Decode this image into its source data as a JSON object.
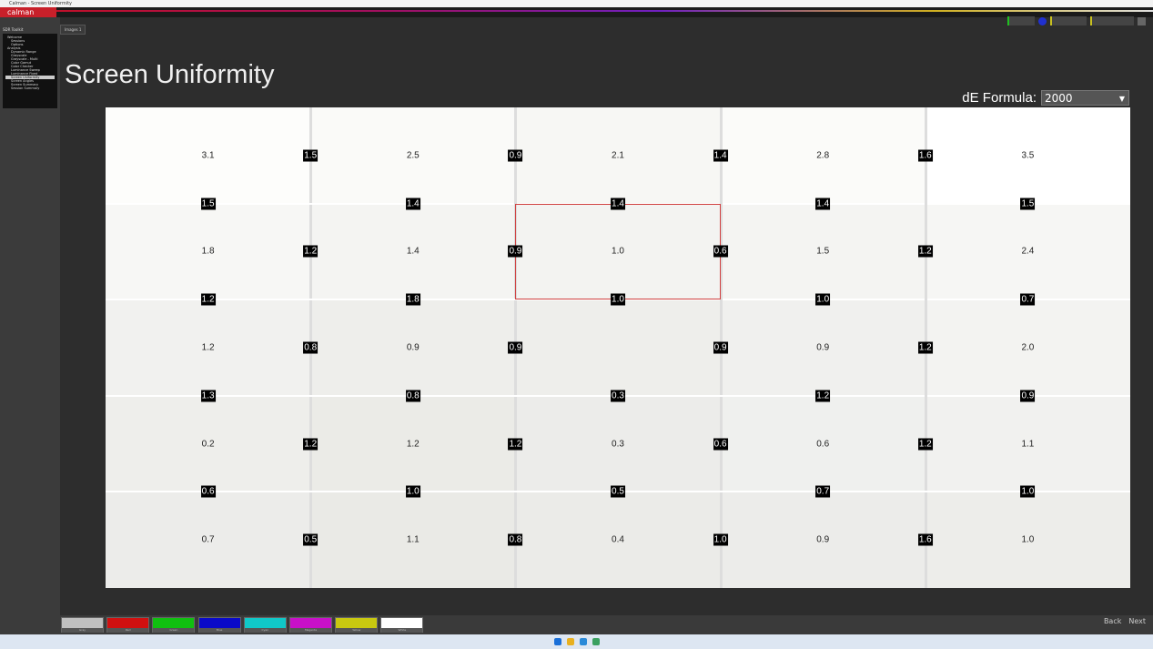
{
  "app": {
    "title": "Calman - Screen Uniformity",
    "logo": "calman",
    "tab": "Images 1"
  },
  "sidebar": {
    "header": "SDR Toolkit",
    "items": [
      {
        "label": "Welcome",
        "section": true
      },
      {
        "label": "Sessions"
      },
      {
        "label": "Options"
      },
      {
        "label": "Analysis",
        "section": true
      },
      {
        "label": "Dynamic Range"
      },
      {
        "label": "Grayscale"
      },
      {
        "label": "Grayscale - Multi"
      },
      {
        "label": "Color Gamut"
      },
      {
        "label": "Color Checker"
      },
      {
        "label": "Luminance Sweep"
      },
      {
        "label": "Luminance Fixed"
      },
      {
        "label": "Screen Uniformity",
        "selected": true
      },
      {
        "label": "Screen Angles"
      },
      {
        "label": "Screen Summary"
      },
      {
        "label": "Session Summary"
      }
    ]
  },
  "page": {
    "title": "Screen Uniformity"
  },
  "formula": {
    "label": "dE Formula:",
    "value": "2000"
  },
  "grid": {
    "centers": [
      [
        "3.1",
        "2.5",
        "2.1",
        "2.8",
        "3.5"
      ],
      [
        "1.8",
        "1.4",
        "1.0",
        "1.5",
        "2.4"
      ],
      [
        "1.2",
        "0.9",
        "",
        "0.9",
        "2.0"
      ],
      [
        "0.2",
        "1.2",
        "0.3",
        "0.6",
        "1.1"
      ],
      [
        "0.7",
        "1.1",
        "0.4",
        "0.9",
        "1.0"
      ]
    ],
    "vertical_boundaries": [
      [
        "1.5",
        "0.9",
        "1.4",
        "1.6"
      ],
      [
        "1.2",
        "0.9",
        "0.6",
        "1.2"
      ],
      [
        "0.8",
        "0.9",
        "0.9",
        "1.2"
      ],
      [
        "1.2",
        "1.2",
        "0.6",
        "1.2"
      ],
      [
        "0.5",
        "0.8",
        "1.0",
        "1.6"
      ]
    ],
    "horizontal_boundaries": [
      [
        "1.5",
        "1.4",
        "1.4",
        "1.4",
        "1.5"
      ],
      [
        "1.2",
        "1.8",
        "1.0",
        "1.0",
        "0.7"
      ],
      [
        "1.3",
        "0.8",
        "0.3",
        "1.2",
        "0.9"
      ],
      [
        "0.6",
        "1.0",
        "0.5",
        "0.7",
        "1.0"
      ]
    ],
    "reference_zone": {
      "row": 1,
      "col": 2
    },
    "zone_colors": [
      [
        "#fdfdfb",
        "#fafaf8",
        "#f7f7f4",
        "#fbfbf9",
        "#ffffff"
      ],
      [
        "#f7f7f5",
        "#f4f4f2",
        "#f3f3f1",
        "#f4f4f2",
        "#f6f6f4"
      ],
      [
        "#f1f1ef",
        "#eeeeeb",
        "#eeeeeb",
        "#f0f0ee",
        "#f3f3f1"
      ],
      [
        "#eeeeeb",
        "#ebebe7",
        "#ececea",
        "#eff0ee",
        "#f1f1ef"
      ],
      [
        "#ececea",
        "#eaeae6",
        "#ebebe8",
        "#ececea",
        "#ededea"
      ]
    ]
  },
  "swatches": [
    {
      "label": "Gray",
      "color": "#c0c0c0"
    },
    {
      "label": "Red",
      "color": "#d01010"
    },
    {
      "label": "Green",
      "color": "#10c010"
    },
    {
      "label": "Blue",
      "color": "#0a0ac8"
    },
    {
      "label": "Cyan",
      "color": "#10c8c8"
    },
    {
      "label": "Magenta",
      "color": "#c810c8"
    },
    {
      "label": "Yellow",
      "color": "#c8c810"
    },
    {
      "label": "White",
      "color": "#ffffff"
    }
  ],
  "nav": {
    "back": "Back",
    "next": "Next"
  }
}
